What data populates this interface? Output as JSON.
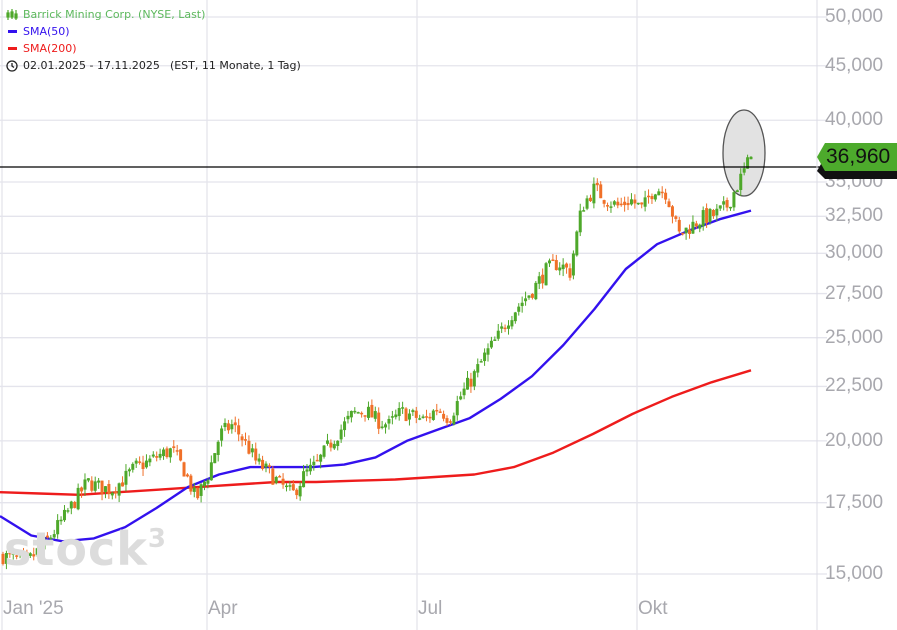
{
  "legend": {
    "instrument": "Barrick Mining Corp. (NYSE, Last)",
    "instrument_color": "#5cb85c",
    "sma50": "SMA(50)",
    "sma50_color": "#3311ee",
    "sma200": "SMA(200)",
    "sma200_color": "#ee1c1c",
    "range": "02.01.2025 - 17.11.2025",
    "range_detail": "(EST, 11 Monate, 1 Tag)"
  },
  "watermark": {
    "text": "stock",
    "sup": "3"
  },
  "last_price": {
    "label": "36,960",
    "value": 36.96,
    "color": "#4daa2c"
  },
  "colors": {
    "up": "#4ea82a",
    "down": "#f07028",
    "grid": "#e4e4ec",
    "axis_text": "#a8a8ae",
    "highlight_fill": "#e2e2e2",
    "highlight_stroke": "#555555"
  },
  "chart_data": {
    "type": "candlestick",
    "title": "Barrick Mining Corp. (NYSE, Last)",
    "subtitle": "02.01.2025 - 17.11.2025 (EST, 11 Monate, 1 Tag)",
    "xlabel": "",
    "ylabel": "",
    "y_scale": "log",
    "ylim": [
      14.0,
      52.0
    ],
    "y_ticks": [
      "15,000",
      "17,500",
      "20,000",
      "22,500",
      "25,000",
      "27,500",
      "30,000",
      "32,500",
      "35,000",
      "40,000",
      "45,000",
      "50,000"
    ],
    "y_tick_values": [
      15,
      17.5,
      20,
      22.5,
      25,
      27.5,
      30,
      32.5,
      35,
      40,
      45,
      50
    ],
    "x_ticks": [
      "Jan '25",
      "Apr",
      "Jul",
      "Okt"
    ],
    "grid": true,
    "legend_position": "top-left",
    "last_value": 36.96,
    "closes_weekly": [
      15.6,
      15.5,
      15.4,
      15.8,
      16.3,
      16.9,
      17.6,
      18.3,
      18.1,
      18.0,
      18.4,
      18.9,
      19.1,
      19.4,
      19.6,
      18.8,
      17.6,
      18.6,
      20.3,
      20.7,
      20.0,
      19.1,
      18.7,
      18.2,
      17.8,
      18.6,
      19.0,
      19.8,
      20.5,
      21.2,
      21.4,
      20.9,
      20.7,
      21.3,
      21.1,
      20.9,
      21.5,
      21.0,
      22.1,
      23.0,
      24.1,
      25.0,
      26.2,
      27.0,
      27.8,
      28.9,
      29.4,
      28.8,
      33.2,
      34.5,
      33.7,
      33.2,
      33.7,
      33.0,
      34.6,
      34.2,
      31.2,
      31.8,
      32.4,
      32.6,
      33.2,
      35.0,
      36.96
    ],
    "series": [
      {
        "name": "SMA(50)",
        "values": [
          17.0,
          16.3,
          16.1,
          16.2,
          16.6,
          17.3,
          18.1,
          18.6,
          18.9,
          18.9,
          18.9,
          19.0,
          19.3,
          20.0,
          20.5,
          21.0,
          21.9,
          23.0,
          24.6,
          26.6,
          29.0,
          30.6,
          31.5,
          32.3,
          32.9
        ]
      },
      {
        "name": "SMA(200)",
        "values": [
          17.9,
          17.85,
          17.8,
          17.9,
          18.0,
          18.1,
          18.2,
          18.3,
          18.3,
          18.35,
          18.4,
          18.5,
          18.6,
          18.9,
          19.5,
          20.3,
          21.2,
          22.0,
          22.7,
          23.3
        ]
      }
    ],
    "annotation": "ellipse highlighting latest candles near 36,960"
  }
}
